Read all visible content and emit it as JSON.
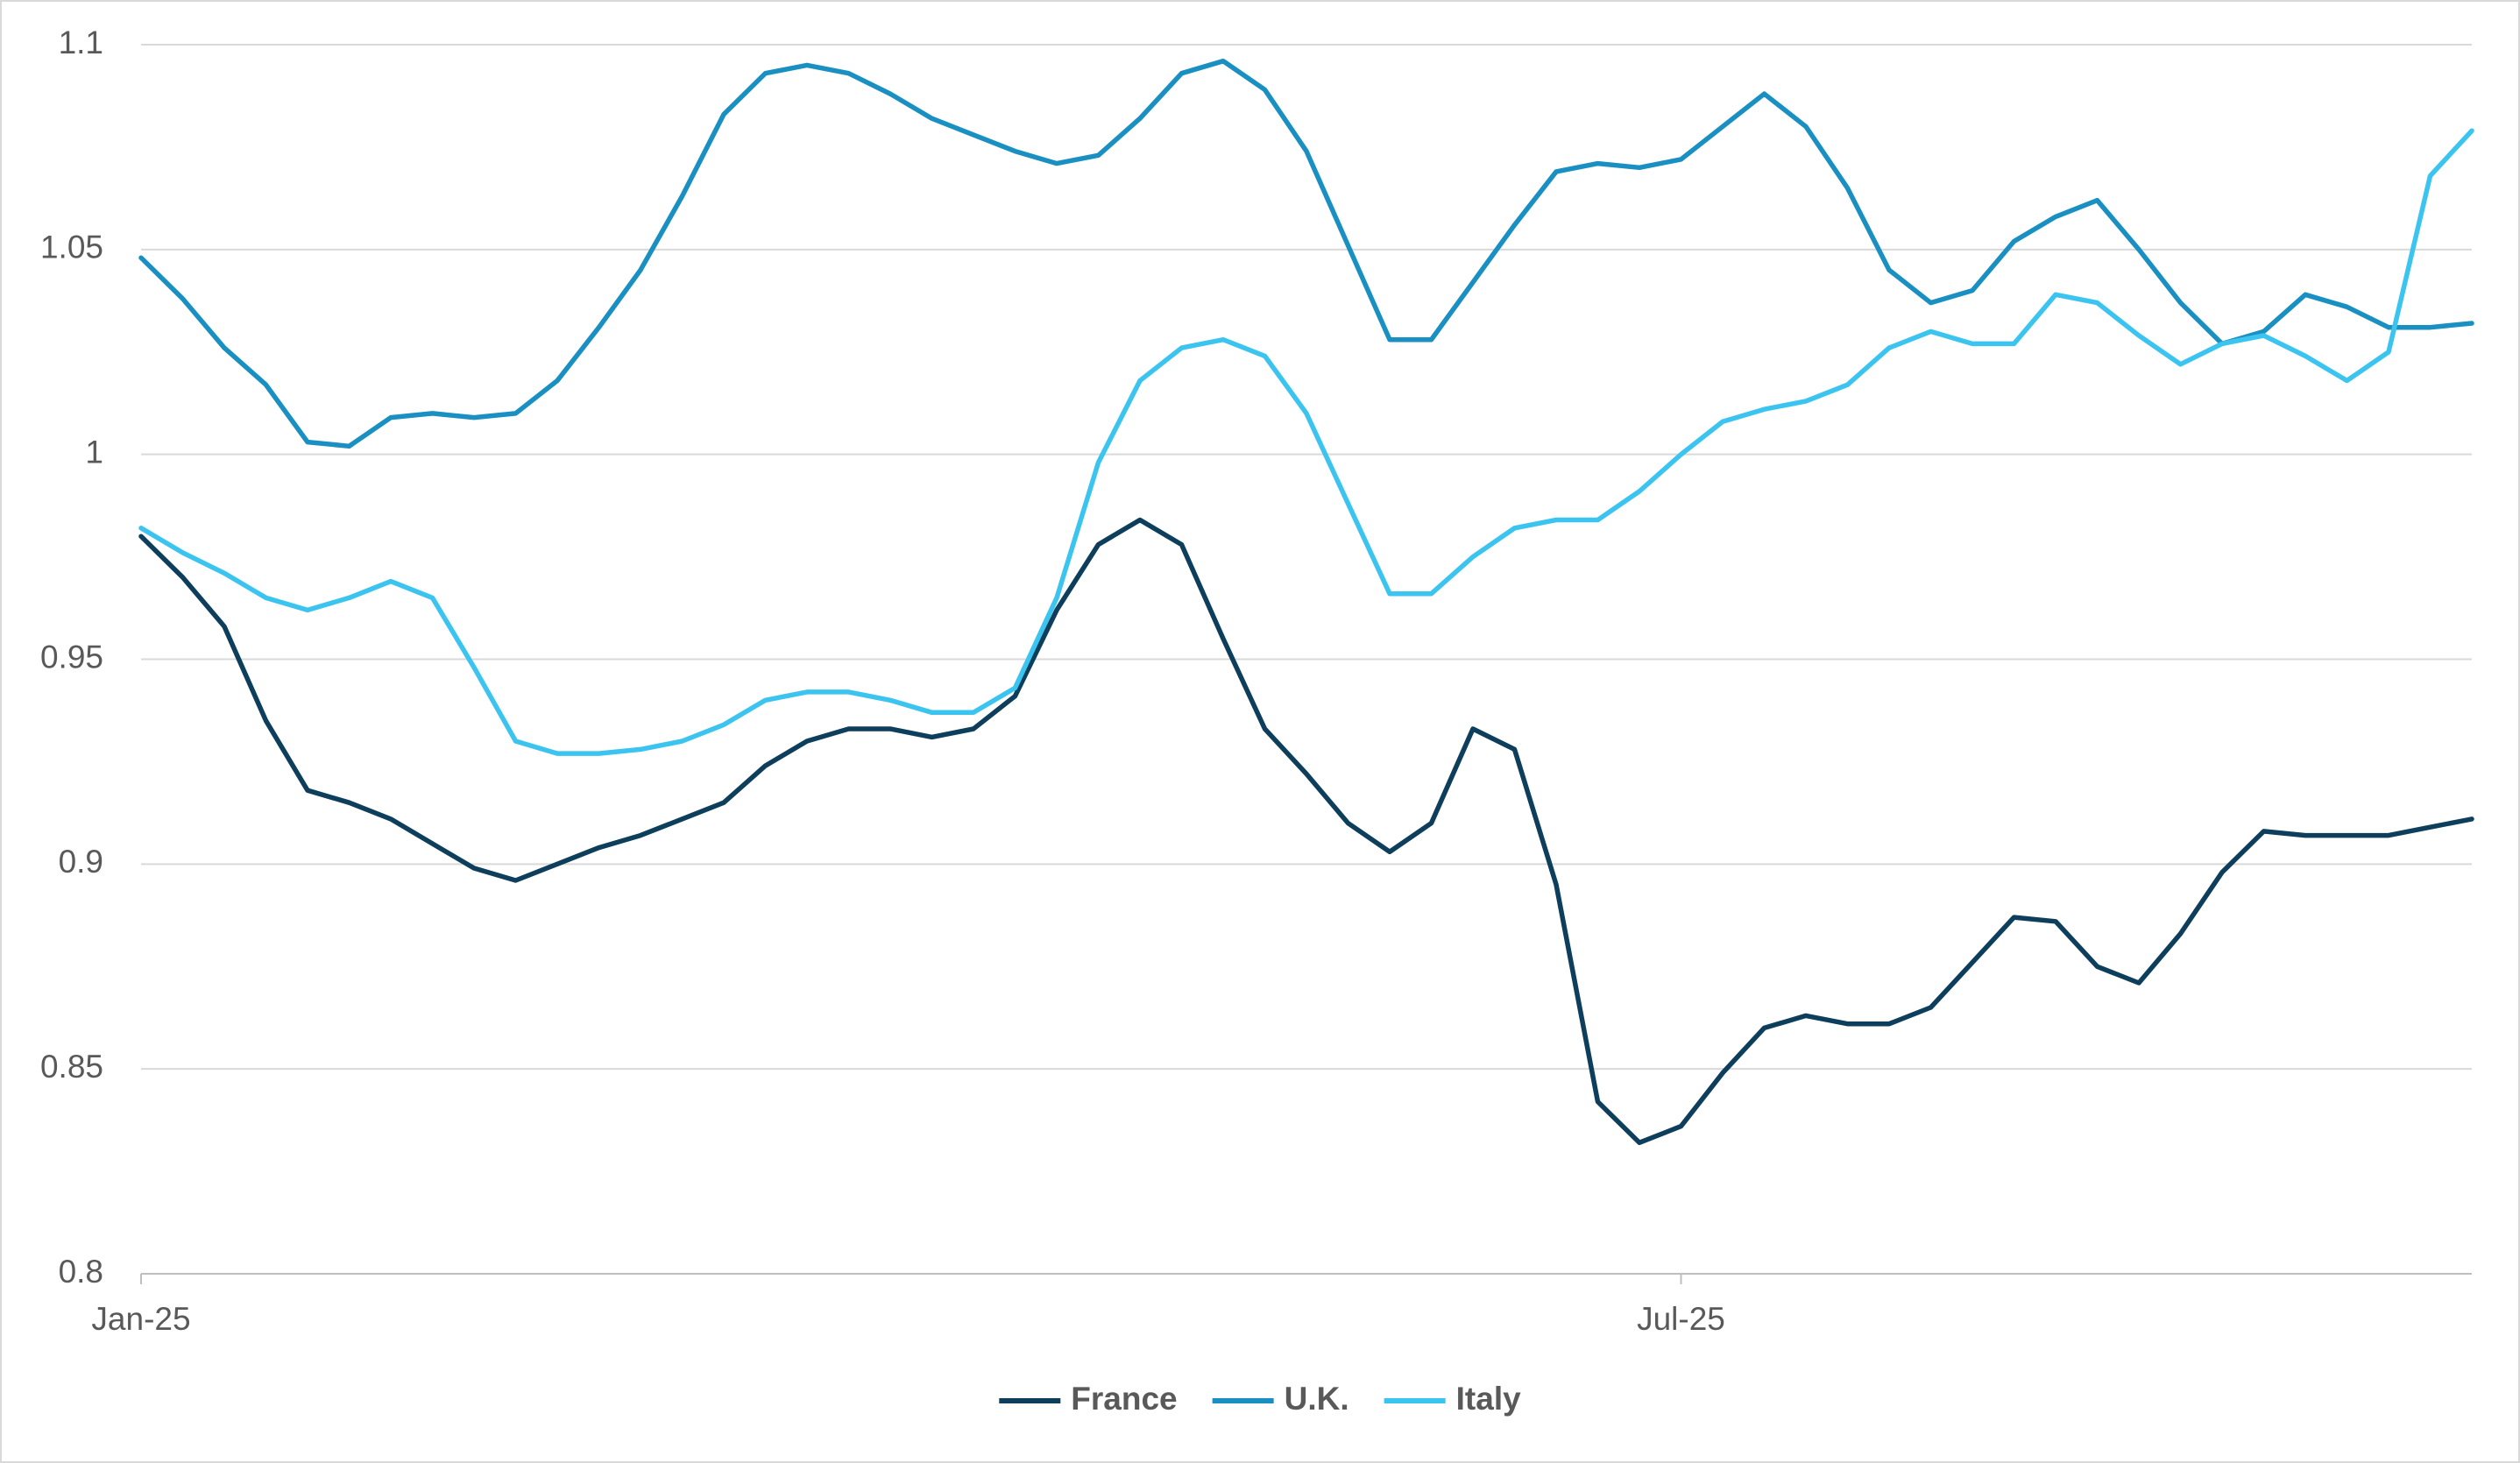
{
  "chart_data": {
    "type": "line",
    "categories": [
      "Jan-25",
      null,
      null,
      null,
      null,
      null,
      null,
      null,
      null,
      null,
      null,
      null,
      null,
      null,
      null,
      null,
      null,
      null,
      null,
      null,
      null,
      null,
      null,
      null,
      null,
      null,
      null,
      null,
      null,
      null,
      null,
      null,
      null,
      null,
      null,
      null,
      null,
      "Jul-25",
      null,
      null,
      null,
      null,
      null,
      null,
      null,
      null,
      null,
      null,
      null,
      null,
      null,
      null,
      null,
      null,
      null,
      null,
      null
    ],
    "series": [
      {
        "name": "France",
        "color": "#0d3e5c",
        "values": [
          0.98,
          0.97,
          0.958,
          0.935,
          0.918,
          0.915,
          0.911,
          0.905,
          0.899,
          0.896,
          0.9,
          0.904,
          0.907,
          0.911,
          0.915,
          0.924,
          0.93,
          0.933,
          0.933,
          0.931,
          0.933,
          0.941,
          0.962,
          0.978,
          0.984,
          0.978,
          0.955,
          0.933,
          0.922,
          0.91,
          0.903,
          0.91,
          0.933,
          0.928,
          0.895,
          0.842,
          0.832,
          0.836,
          0.849,
          0.86,
          0.863,
          0.861,
          0.861,
          0.865,
          0.876,
          0.887,
          0.886,
          0.875,
          0.871,
          0.883,
          0.898,
          0.908,
          0.907,
          0.907,
          0.907,
          0.909,
          0.911
        ]
      },
      {
        "name": "U.K.",
        "color": "#1a90c2",
        "values": [
          1.048,
          1.038,
          1.026,
          1.017,
          1.003,
          1.002,
          1.009,
          1.01,
          1.009,
          1.01,
          1.018,
          1.031,
          1.045,
          1.063,
          1.083,
          1.093,
          1.095,
          1.093,
          1.088,
          1.082,
          1.078,
          1.074,
          1.071,
          1.073,
          1.082,
          1.093,
          1.096,
          1.089,
          1.074,
          1.051,
          1.028,
          1.028,
          1.042,
          1.056,
          1.069,
          1.071,
          1.07,
          1.072,
          1.08,
          1.088,
          1.08,
          1.065,
          1.045,
          1.037,
          1.04,
          1.052,
          1.058,
          1.062,
          1.05,
          1.037,
          1.027,
          1.03,
          1.039,
          1.036,
          1.031,
          1.031,
          1.032
        ]
      },
      {
        "name": "Italy",
        "color": "#3cc4f0",
        "values": [
          0.982,
          0.976,
          0.971,
          0.965,
          0.962,
          0.965,
          0.969,
          0.965,
          0.948,
          0.93,
          0.927,
          0.927,
          0.928,
          0.93,
          0.934,
          0.94,
          0.942,
          0.942,
          0.94,
          0.937,
          0.937,
          0.943,
          0.965,
          0.998,
          1.018,
          1.026,
          1.028,
          1.024,
          1.01,
          0.988,
          0.966,
          0.966,
          0.975,
          0.982,
          0.984,
          0.984,
          0.991,
          1.0,
          1.008,
          1.011,
          1.013,
          1.017,
          1.026,
          1.03,
          1.027,
          1.027,
          1.039,
          1.037,
          1.029,
          1.022,
          1.027,
          1.029,
          1.024,
          1.018,
          1.025,
          1.068,
          1.079
        ]
      }
    ],
    "ylim": [
      0.8,
      1.1
    ],
    "yticks": [
      0.8,
      0.85,
      0.9,
      0.95,
      1,
      1.05,
      1.1
    ],
    "grid": true,
    "legend": "bottom"
  }
}
